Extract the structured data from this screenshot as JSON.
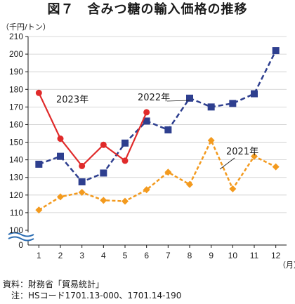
{
  "title": "図７　含みつ糖の輸入価格の推移",
  "notes": {
    "source": "資料：財務省「貿易統計」",
    "note": "　注：HSコード1701.13-000、1701.14-190"
  },
  "colors": {
    "2021": "#f39a1e",
    "2022": "#2e3f8f",
    "2023": "#e02a2a",
    "axis": "#1a1a1a",
    "grid": "#cccccc",
    "break": "#2b6db3"
  },
  "chart_data": {
    "type": "line",
    "ylabel": "（千円/トン）",
    "xlabel": "（月）",
    "ylim": [
      100,
      210
    ],
    "y_ticks": [
      0,
      100,
      110,
      120,
      130,
      140,
      150,
      160,
      170,
      180,
      190,
      200,
      210
    ],
    "y_axis_break": "0-100",
    "grid": true,
    "categories": [
      "1",
      "2",
      "3",
      "4",
      "5",
      "6",
      "7",
      "8",
      "9",
      "10",
      "11",
      "12"
    ],
    "series": [
      {
        "name": "2021年",
        "color": "#f39a1e",
        "style": "dashed",
        "marker": "diamond",
        "values": [
          111.5,
          119,
          121.5,
          117,
          116.5,
          123,
          133,
          126,
          151,
          123.5,
          142,
          136
        ]
      },
      {
        "name": "2022年",
        "color": "#2e3f8f",
        "style": "dashed",
        "marker": "square",
        "values": [
          137.5,
          142,
          127.5,
          132.5,
          149.5,
          162,
          157,
          175,
          170,
          172,
          177.5,
          202
        ]
      },
      {
        "name": "2023年",
        "color": "#e02a2a",
        "style": "solid",
        "marker": "circle",
        "values": [
          178,
          152,
          136.5,
          148.5,
          139.5,
          167,
          null,
          null,
          null,
          null,
          null,
          null
        ]
      }
    ]
  }
}
